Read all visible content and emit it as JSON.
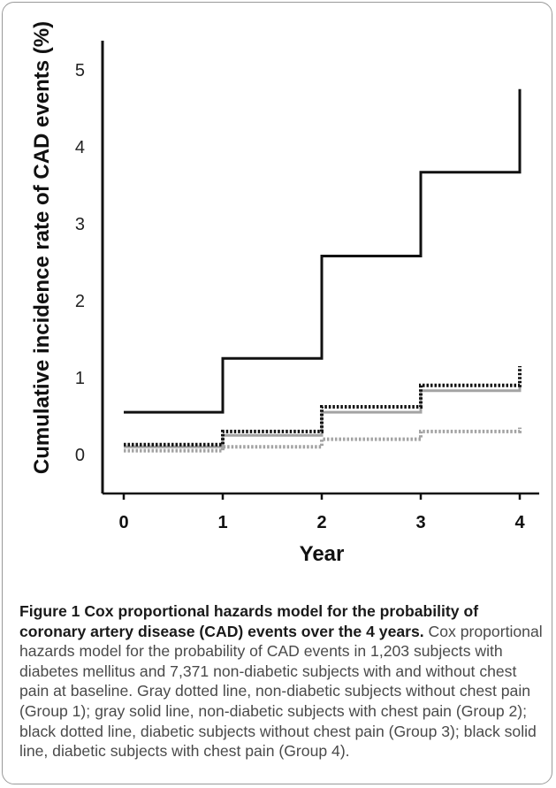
{
  "chart_data": {
    "type": "line",
    "step": true,
    "xlabel": "Year",
    "ylabel": "Cumulative incidence rate of CAD events (%)",
    "xlim": [
      0,
      4
    ],
    "ylim": [
      0,
      5.5
    ],
    "x_ticks": [
      "0",
      "1",
      "2",
      "3",
      "4"
    ],
    "y_ticks": [
      "0",
      "1",
      "2",
      "3",
      "4",
      "5"
    ],
    "grid": false,
    "legend": "none",
    "series": [
      {
        "x": [
          0,
          1,
          2,
          3,
          4
        ],
        "values": [
          0.05,
          0.1,
          0.2,
          0.3,
          0.35
        ],
        "color": "#a3a3a3",
        "style": "dotted"
      },
      {
        "x": [
          0,
          1,
          2,
          3,
          4
        ],
        "values": [
          0.1,
          0.25,
          0.55,
          0.83,
          0.9
        ],
        "color": "#a3a3a3",
        "style": "solid"
      },
      {
        "x": [
          0,
          1,
          2,
          3,
          4
        ],
        "values": [
          0.13,
          0.3,
          0.62,
          0.9,
          1.15
        ],
        "color": "#111111",
        "style": "dotted"
      },
      {
        "x": [
          0,
          1,
          2,
          3,
          4
        ],
        "values": [
          0.55,
          1.25,
          2.58,
          3.67,
          4.75
        ],
        "color": "#111111",
        "style": "solid"
      }
    ]
  },
  "caption": {
    "title": "Figure 1 Cox proportional hazards model for the probability of coronary artery disease (CAD) events over the 4 years.",
    "body": "Cox proportional hazards model for the probability of CAD events in 1,203 subjects with diabetes mellitus and 7,371 non-diabetic subjects with and without chest pain at baseline. Gray dotted line, non-diabetic subjects without chest pain (Group 1); gray solid line, non-diabetic subjects with chest pain (Group 2); black dotted line, diabetic subjects without chest pain (Group 3); black solid line, diabetic subjects with chest pain (Group 4)."
  }
}
